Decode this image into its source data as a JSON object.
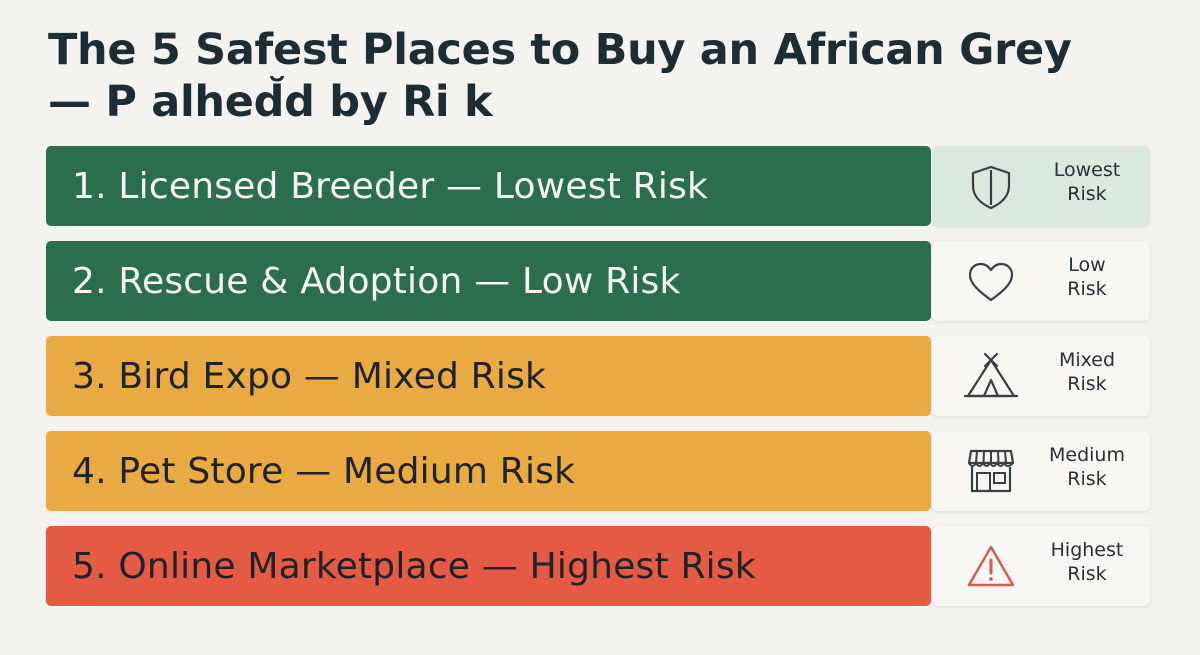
{
  "title": {
    "line1": "The 5 Safest Places to Buy an African Grey",
    "line2": "— P alhed̆d by Ri k"
  },
  "rows": [
    {
      "label": "1. Licensed Breeder — Lowest Risk",
      "color": "#2b6e4e",
      "tag_line1": "Lowest",
      "tag_line2": "Risk",
      "icon": "shield-icon"
    },
    {
      "label": "2. Rescue & Adoption — Low Risk",
      "color": "#2b6e4e",
      "tag_line1": "Low",
      "tag_line2": "Risk",
      "icon": "heart-icon"
    },
    {
      "label": "3. Bird Expo — Mixed Risk",
      "color": "#eaaa43",
      "tag_line1": "Mixed",
      "tag_line2": "Risk",
      "icon": "tent-icon"
    },
    {
      "label": "4. Pet Store — Medium Risk",
      "color": "#eaaa43",
      "tag_line1": "Medium",
      "tag_line2": "Risk",
      "icon": "storefront-icon"
    },
    {
      "label": "5. Online Marketplace — Highest Risk",
      "color": "#e55a45",
      "tag_line1": "Highest",
      "tag_line2": "Risk",
      "icon": "warning-icon"
    }
  ]
}
